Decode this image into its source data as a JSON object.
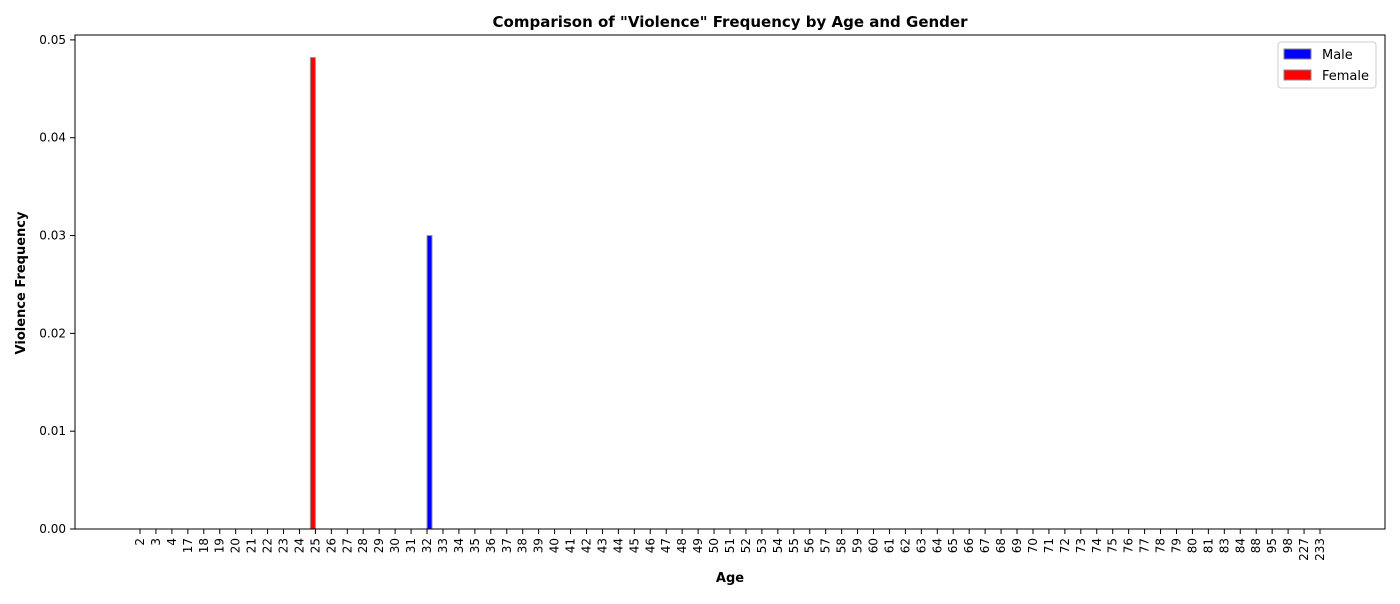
{
  "chart_data": {
    "type": "bar",
    "title": "Comparison of \"Violence\" Frequency by Age and Gender",
    "xlabel": "Age",
    "ylabel": "Violence Frequency",
    "ylim": [
      0,
      0.0505
    ],
    "yticks": [
      "0.00",
      "0.01",
      "0.02",
      "0.03",
      "0.04",
      "0.05"
    ],
    "legend_position": "top-right",
    "categories": [
      "2",
      "3",
      "4",
      "17",
      "18",
      "19",
      "20",
      "21",
      "22",
      "23",
      "24",
      "25",
      "26",
      "27",
      "28",
      "29",
      "30",
      "31",
      "32",
      "33",
      "34",
      "35",
      "36",
      "37",
      "38",
      "39",
      "40",
      "41",
      "42",
      "43",
      "44",
      "45",
      "46",
      "47",
      "48",
      "49",
      "50",
      "51",
      "52",
      "53",
      "54",
      "55",
      "56",
      "57",
      "58",
      "59",
      "60",
      "61",
      "62",
      "63",
      "64",
      "65",
      "66",
      "67",
      "68",
      "69",
      "70",
      "71",
      "72",
      "73",
      "74",
      "75",
      "76",
      "77",
      "78",
      "79",
      "80",
      "81",
      "83",
      "84",
      "88",
      "95",
      "98",
      "227",
      "233"
    ],
    "series": [
      {
        "name": "Male",
        "color": "#0000ff",
        "values": [
          0,
          0,
          0,
          0,
          0,
          0,
          0,
          0,
          0,
          0,
          0,
          0,
          0,
          0,
          0,
          0,
          0,
          0,
          0.03,
          0,
          0,
          0,
          0,
          0,
          0,
          0,
          0,
          0,
          0,
          0,
          0,
          0,
          0,
          0,
          0,
          0,
          0,
          0,
          0,
          0,
          0,
          0,
          0,
          0,
          0,
          0,
          0,
          0,
          0,
          0,
          0,
          0,
          0,
          0,
          0,
          0,
          0,
          0,
          0,
          0,
          0,
          0,
          0,
          0,
          0,
          0,
          0,
          0,
          0,
          0,
          0,
          0,
          0,
          0,
          0
        ]
      },
      {
        "name": "Female",
        "color": "#ff0000",
        "values": [
          0,
          0,
          0,
          0,
          0,
          0,
          0,
          0,
          0,
          0,
          0,
          0.0482,
          0,
          0,
          0,
          0,
          0,
          0,
          0,
          0,
          0,
          0,
          0,
          0,
          0,
          0,
          0,
          0,
          0,
          0,
          0,
          0,
          0,
          0,
          0,
          0,
          0,
          0,
          0,
          0,
          0,
          0,
          0,
          0,
          0,
          0,
          0,
          0,
          0,
          0,
          0,
          0,
          0,
          0,
          0,
          0,
          0,
          0,
          0,
          0,
          0,
          0,
          0,
          0,
          0,
          0,
          0,
          0,
          0,
          0,
          0,
          0,
          0,
          0,
          0
        ]
      }
    ]
  }
}
